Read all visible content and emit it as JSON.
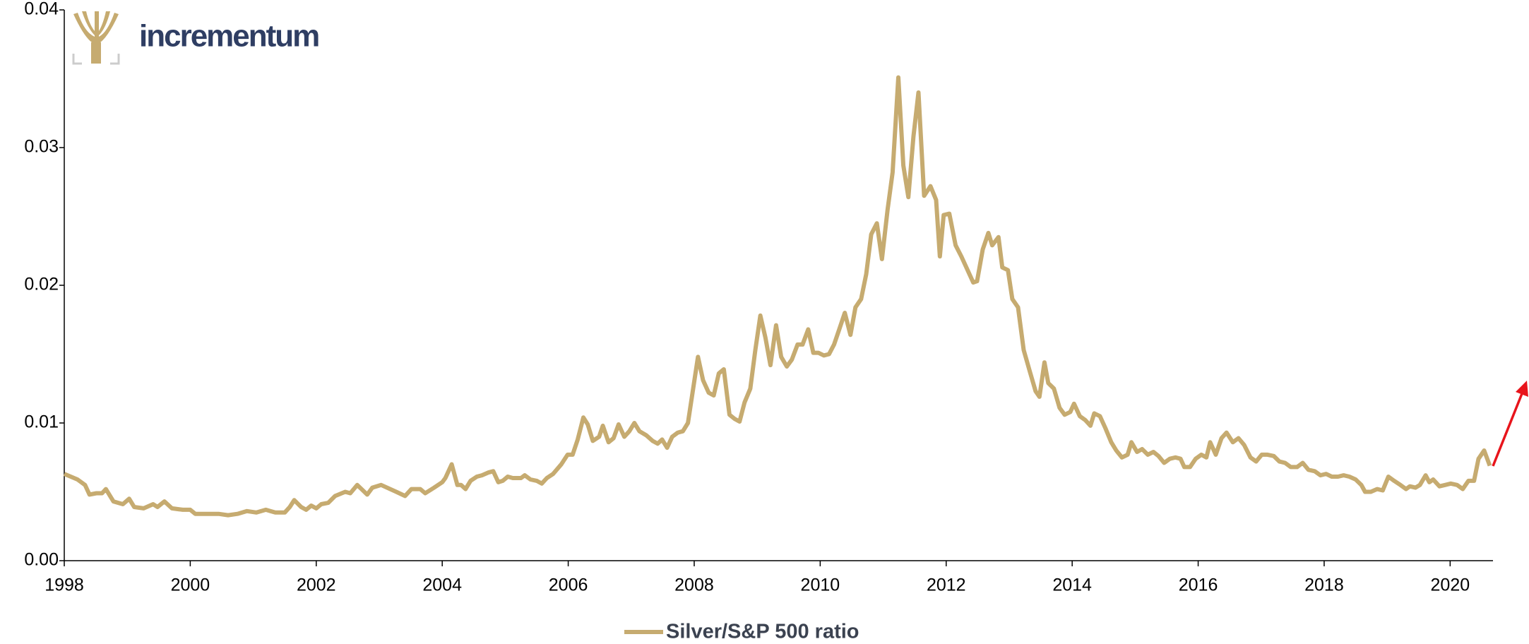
{
  "chart_data": {
    "type": "line",
    "logo": "incrementum",
    "x": [
      1998.0,
      1998.21,
      1998.33,
      1998.4,
      1998.51,
      1998.6,
      1998.66,
      1998.78,
      1998.93,
      1999.03,
      1999.11,
      1999.26,
      1999.41,
      1999.48,
      1999.59,
      1999.71,
      1999.88,
      2000.0,
      2000.08,
      2000.23,
      2000.45,
      2000.6,
      2000.75,
      2000.9,
      2001.05,
      2001.2,
      2001.35,
      2001.5,
      2001.58,
      2001.65,
      2001.76,
      2001.84,
      2001.92,
      2002.0,
      2002.08,
      2002.19,
      2002.3,
      2002.46,
      2002.54,
      2002.65,
      2002.81,
      2002.89,
      2003.03,
      2003.27,
      2003.41,
      2003.51,
      2003.65,
      2003.73,
      2003.87,
      2004.0,
      2004.05,
      2004.15,
      2004.24,
      2004.3,
      2004.37,
      2004.45,
      2004.55,
      2004.63,
      2004.73,
      2004.81,
      2004.89,
      2004.96,
      2005.04,
      2005.12,
      2005.25,
      2005.31,
      2005.4,
      2005.5,
      2005.58,
      2005.66,
      2005.76,
      2005.89,
      2005.99,
      2006.07,
      2006.15,
      2006.24,
      2006.31,
      2006.39,
      2006.49,
      2006.55,
      2006.64,
      2006.72,
      2006.8,
      2006.89,
      2006.97,
      2007.05,
      2007.13,
      2007.24,
      2007.34,
      2007.42,
      2007.49,
      2007.57,
      2007.65,
      2007.74,
      2007.82,
      2007.9,
      2007.98,
      2008.06,
      2008.14,
      2008.23,
      2008.31,
      2008.39,
      2008.47,
      2008.56,
      2008.64,
      2008.72,
      2008.8,
      2008.89,
      2008.97,
      2009.05,
      2009.13,
      2009.21,
      2009.3,
      2009.38,
      2009.47,
      2009.55,
      2009.64,
      2009.72,
      2009.81,
      2009.89,
      2009.97,
      2010.06,
      2010.14,
      2010.22,
      2010.31,
      2010.39,
      2010.48,
      2010.56,
      2010.65,
      2010.73,
      2010.81,
      2010.9,
      2010.98,
      2011.07,
      2011.15,
      2011.24,
      2011.32,
      2011.4,
      2011.48,
      2011.56,
      2011.65,
      2011.75,
      2011.84,
      2011.9,
      2011.96,
      2012.05,
      2012.15,
      2012.24,
      2012.33,
      2012.43,
      2012.49,
      2012.58,
      2012.67,
      2012.73,
      2012.83,
      2012.89,
      2012.98,
      2013.05,
      2013.14,
      2013.23,
      2013.33,
      2013.42,
      2013.48,
      2013.56,
      2013.62,
      2013.71,
      2013.8,
      2013.88,
      2013.97,
      2014.03,
      2014.12,
      2014.21,
      2014.29,
      2014.35,
      2014.44,
      2014.53,
      2014.62,
      2014.7,
      2014.79,
      2014.88,
      2014.94,
      2015.03,
      2015.11,
      2015.2,
      2015.29,
      2015.37,
      2015.46,
      2015.55,
      2015.64,
      2015.72,
      2015.78,
      2015.87,
      2015.96,
      2016.05,
      2016.13,
      2016.19,
      2016.28,
      2016.37,
      2016.45,
      2016.55,
      2016.64,
      2016.73,
      2016.83,
      2016.92,
      2017.01,
      2017.1,
      2017.2,
      2017.29,
      2017.38,
      2017.47,
      2017.57,
      2017.66,
      2017.75,
      2017.85,
      2017.94,
      2018.03,
      2018.12,
      2018.22,
      2018.31,
      2018.4,
      2018.5,
      2018.59,
      2018.65,
      2018.74,
      2018.84,
      2018.93,
      2019.02,
      2019.11,
      2019.21,
      2019.3,
      2019.36,
      2019.45,
      2019.52,
      2019.61,
      2019.67,
      2019.73,
      2019.83,
      2019.92,
      2020.01,
      2020.11,
      2020.2,
      2020.29,
      2020.38,
      2020.45,
      2020.54,
      2020.63
    ],
    "series": [
      {
        "name": "Silver/S&P 500 ratio",
        "color": "#c6ab70",
        "values": [
          0.0063,
          0.0059,
          0.0055,
          0.0048,
          0.0049,
          0.0049,
          0.0052,
          0.0043,
          0.0041,
          0.0045,
          0.0039,
          0.0038,
          0.0041,
          0.0039,
          0.0043,
          0.0038,
          0.0037,
          0.0037,
          0.0034,
          0.0034,
          0.0034,
          0.0033,
          0.0034,
          0.0036,
          0.0035,
          0.0037,
          0.0035,
          0.0035,
          0.0039,
          0.0044,
          0.0039,
          0.0037,
          0.004,
          0.0038,
          0.0041,
          0.0042,
          0.0047,
          0.005,
          0.0049,
          0.0055,
          0.0048,
          0.0053,
          0.0055,
          0.005,
          0.0047,
          0.0052,
          0.0052,
          0.0049,
          0.0053,
          0.0057,
          0.006,
          0.007,
          0.0055,
          0.0055,
          0.0052,
          0.0058,
          0.0061,
          0.0062,
          0.0064,
          0.0065,
          0.0057,
          0.0058,
          0.0061,
          0.006,
          0.006,
          0.0062,
          0.0059,
          0.0058,
          0.0056,
          0.006,
          0.0063,
          0.007,
          0.0077,
          0.0077,
          0.0088,
          0.0104,
          0.0099,
          0.0087,
          0.009,
          0.0098,
          0.0086,
          0.0089,
          0.0099,
          0.009,
          0.0094,
          0.01,
          0.0094,
          0.0091,
          0.0087,
          0.0085,
          0.0088,
          0.0082,
          0.009,
          0.0093,
          0.0094,
          0.01,
          0.0124,
          0.0148,
          0.0131,
          0.0122,
          0.012,
          0.0136,
          0.0139,
          0.0106,
          0.0103,
          0.0101,
          0.0115,
          0.0125,
          0.0153,
          0.0178,
          0.0162,
          0.0142,
          0.0171,
          0.0148,
          0.0141,
          0.0146,
          0.0157,
          0.0157,
          0.0168,
          0.0151,
          0.0151,
          0.0149,
          0.015,
          0.0157,
          0.0169,
          0.018,
          0.0164,
          0.0184,
          0.019,
          0.0208,
          0.0237,
          0.0245,
          0.0219,
          0.0255,
          0.0282,
          0.0351,
          0.0287,
          0.0264,
          0.0308,
          0.034,
          0.0265,
          0.0272,
          0.0262,
          0.0221,
          0.0251,
          0.0252,
          0.0229,
          0.0221,
          0.0212,
          0.0202,
          0.0203,
          0.0226,
          0.0238,
          0.0229,
          0.0235,
          0.0213,
          0.0211,
          0.019,
          0.0184,
          0.0153,
          0.0137,
          0.0123,
          0.0119,
          0.0144,
          0.0129,
          0.0125,
          0.0111,
          0.0106,
          0.0108,
          0.0114,
          0.0105,
          0.0102,
          0.0098,
          0.0107,
          0.0105,
          0.0096,
          0.0086,
          0.008,
          0.0075,
          0.0077,
          0.0086,
          0.0079,
          0.0081,
          0.0077,
          0.0079,
          0.0076,
          0.0071,
          0.0074,
          0.0075,
          0.0074,
          0.0068,
          0.0068,
          0.0074,
          0.0077,
          0.0075,
          0.0086,
          0.0077,
          0.0089,
          0.0093,
          0.0086,
          0.0089,
          0.0084,
          0.0075,
          0.0072,
          0.0077,
          0.0077,
          0.0076,
          0.0072,
          0.0071,
          0.0068,
          0.0068,
          0.0071,
          0.0066,
          0.0065,
          0.0062,
          0.0063,
          0.0061,
          0.0061,
          0.0062,
          0.0061,
          0.0059,
          0.0055,
          0.005,
          0.005,
          0.0052,
          0.0051,
          0.0061,
          0.0058,
          0.0055,
          0.0052,
          0.0054,
          0.0053,
          0.0055,
          0.0062,
          0.0057,
          0.0059,
          0.0054,
          0.0055,
          0.0056,
          0.0055,
          0.0052,
          0.0058,
          0.0058,
          0.0074,
          0.008,
          0.0069
        ]
      }
    ],
    "xlim": [
      1998,
      2020.68
    ],
    "xticks": [
      1998,
      2000,
      2002,
      2004,
      2006,
      2008,
      2010,
      2012,
      2014,
      2016,
      2018,
      2020
    ],
    "ylim": [
      0,
      0.04
    ],
    "yticks": [
      {
        "value": 0,
        "label": "0.00"
      },
      0.01,
      0.02,
      0.03,
      0.04
    ],
    "legend": "bottom"
  }
}
